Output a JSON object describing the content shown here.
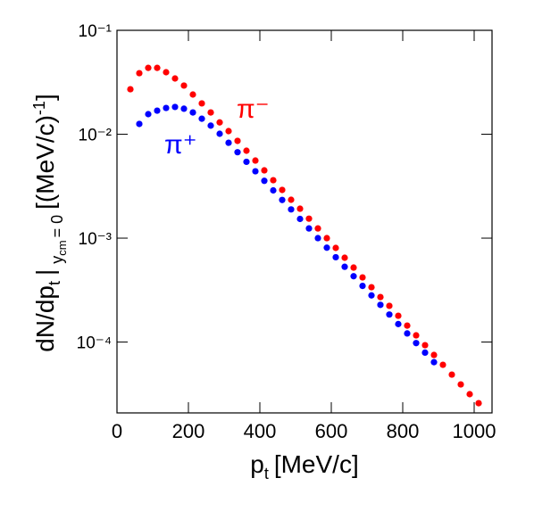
{
  "chart_data": {
    "type": "scatter",
    "log_y": true,
    "x_label": {
      "text": "p",
      "sub": "t",
      "unit": "[MeV/c]"
    },
    "y_label": {
      "text": "dN/dp",
      "sub": "t",
      "bar": "|",
      "cond": "y",
      "cond_sub": "cm",
      "cond_eq": "= 0",
      "unit": "[(MeV/c)",
      "unit_sup": "-1",
      "close": "]"
    },
    "xlim": [
      0,
      1050
    ],
    "xticks": [
      0,
      200,
      400,
      600,
      800,
      1000
    ],
    "ylim": [
      2.08e-05,
      0.1
    ],
    "yticks": [
      {
        "value": 0.1,
        "label": "10⁻¹"
      },
      {
        "value": 0.01,
        "label": "10⁻²"
      },
      {
        "value": 0.001,
        "label": "10⁻³"
      },
      {
        "value": 0.0001,
        "label": "10⁻⁴"
      }
    ],
    "series": [
      {
        "name": "π⁻",
        "color": "#ff0000",
        "x": [
          37.5,
          62.5,
          87.5,
          112.5,
          137.5,
          162.5,
          187.5,
          212.5,
          237.5,
          262.5,
          287.5,
          312.5,
          337.5,
          362.5,
          387.5,
          412.5,
          437.5,
          462.5,
          487.5,
          512.5,
          537.5,
          562.5,
          587.5,
          612.5,
          637.5,
          662.5,
          687.5,
          712.5,
          737.5,
          762.5,
          787.5,
          812.5,
          837.5,
          862.5,
          887.5,
          912.5,
          937.5,
          962.5,
          987.5,
          1012.5
        ],
        "values": [
          0.0271,
          0.0387,
          0.0435,
          0.0435,
          0.0395,
          0.0344,
          0.0294,
          0.0241,
          0.0198,
          0.0162,
          0.013,
          0.01072,
          0.00863,
          0.00694,
          0.00558,
          0.00449,
          0.00361,
          0.00291,
          0.00234,
          0.00192,
          0.00154,
          0.00124,
          0.001,
          0.000805,
          0.000648,
          0.000521,
          0.000419,
          0.000337,
          0.000271,
          0.000223,
          0.000179,
          0.000144,
          0.000116,
          9.33e-05,
          7.51e-05,
          6.04e-05,
          4.86e-05,
          3.91e-05,
          3.15e-05,
          2.58e-05
        ]
      },
      {
        "name": "π⁺",
        "color": "#0000ff",
        "x": [
          62.5,
          87.5,
          112.5,
          137.5,
          162.5,
          187.5,
          212.5,
          237.5,
          262.5,
          287.5,
          312.5,
          337.5,
          362.5,
          387.5,
          412.5,
          437.5,
          462.5,
          487.5,
          512.5,
          537.5,
          562.5,
          587.5,
          612.5,
          637.5,
          662.5,
          687.5,
          712.5,
          737.5,
          762.5,
          787.5,
          812.5,
          837.5,
          862.5,
          887.5
        ],
        "values": [
          0.01256,
          0.0156,
          0.01687,
          0.0179,
          0.0183,
          0.0176,
          0.0162,
          0.0141,
          0.0121,
          0.0101,
          0.00828,
          0.00671,
          0.00543,
          0.0044,
          0.00356,
          0.00288,
          0.00233,
          0.00189,
          0.00153,
          0.00124,
          0.001,
          0.000809,
          0.000655,
          0.00053,
          0.00043,
          0.000347,
          0.000281,
          0.000228,
          0.000184,
          0.000149,
          0.000121,
          9.77e-05,
          7.91e-05,
          6.4e-05
        ]
      }
    ]
  }
}
